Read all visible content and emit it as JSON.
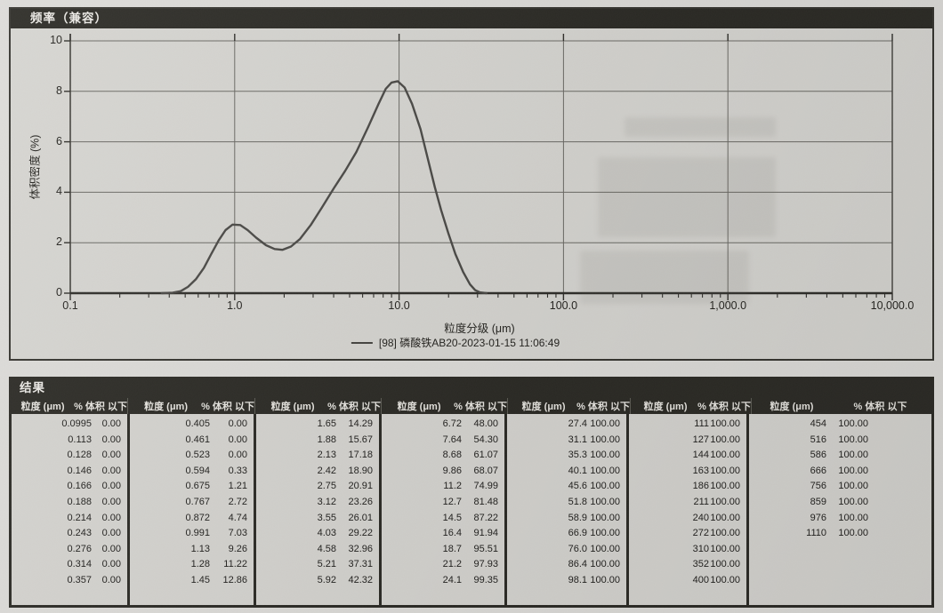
{
  "chart_panel": {
    "title": "频率（兼容）",
    "y_axis": {
      "label": "体积密度 (%)",
      "ticks": [
        "10",
        "8",
        "6",
        "4",
        "2",
        "0"
      ]
    },
    "x_axis": {
      "label": "粒度分级 (μm)",
      "ticks": [
        "0.1",
        "1.0",
        "10.0",
        "100.0",
        "1,000.0",
        "10,000.0"
      ]
    },
    "legend": "[98] 磷酸铁AB20-2023-01-15 11:06:49"
  },
  "chart_data": {
    "type": "line",
    "title": "频率（兼容）",
    "xlabel": "粒度分级 (μm)",
    "ylabel": "体积密度 (%)",
    "x_scale": "log",
    "xlim": [
      0.1,
      10000
    ],
    "ylim": [
      0,
      10
    ],
    "grid": true,
    "legend_position": "bottom",
    "series": [
      {
        "name": "[98] 磷酸铁AB20-2023-01-15 11:06:49",
        "x": [
          0.36,
          0.42,
          0.47,
          0.52,
          0.58,
          0.65,
          0.72,
          0.8,
          0.88,
          0.97,
          1.08,
          1.2,
          1.35,
          1.55,
          1.75,
          1.95,
          2.2,
          2.5,
          2.9,
          3.4,
          4.0,
          4.7,
          5.5,
          6.5,
          7.5,
          8.3,
          9.0,
          9.8,
          10.8,
          12.0,
          13.5,
          15.0,
          16.5,
          18.0,
          20.0,
          22.0,
          24.5,
          27.0,
          29.0,
          31.0,
          34.0
        ],
        "y": [
          0,
          0.02,
          0.08,
          0.25,
          0.55,
          1.0,
          1.55,
          2.1,
          2.5,
          2.72,
          2.7,
          2.5,
          2.2,
          1.9,
          1.75,
          1.72,
          1.85,
          2.15,
          2.7,
          3.4,
          4.15,
          4.85,
          5.6,
          6.6,
          7.5,
          8.1,
          8.35,
          8.4,
          8.15,
          7.5,
          6.5,
          5.3,
          4.2,
          3.3,
          2.35,
          1.55,
          0.85,
          0.35,
          0.12,
          0.03,
          0
        ]
      }
    ]
  },
  "results_table": {
    "title": "结果",
    "size_header": "粒度 (μm)",
    "pct_header": "% 体积 以下",
    "groups": [
      {
        "rows": [
          [
            "0.0995",
            "0.00"
          ],
          [
            "0.113",
            "0.00"
          ],
          [
            "0.128",
            "0.00"
          ],
          [
            "0.146",
            "0.00"
          ],
          [
            "0.166",
            "0.00"
          ],
          [
            "0.188",
            "0.00"
          ],
          [
            "0.214",
            "0.00"
          ],
          [
            "0.243",
            "0.00"
          ],
          [
            "0.276",
            "0.00"
          ],
          [
            "0.314",
            "0.00"
          ],
          [
            "0.357",
            "0.00"
          ]
        ]
      },
      {
        "rows": [
          [
            "0.405",
            "0.00"
          ],
          [
            "0.461",
            "0.00"
          ],
          [
            "0.523",
            "0.00"
          ],
          [
            "0.594",
            "0.33"
          ],
          [
            "0.675",
            "1.21"
          ],
          [
            "0.767",
            "2.72"
          ],
          [
            "0.872",
            "4.74"
          ],
          [
            "0.991",
            "7.03"
          ],
          [
            "1.13",
            "9.26"
          ],
          [
            "1.28",
            "11.22"
          ],
          [
            "1.45",
            "12.86"
          ]
        ]
      },
      {
        "rows": [
          [
            "1.65",
            "14.29"
          ],
          [
            "1.88",
            "15.67"
          ],
          [
            "2.13",
            "17.18"
          ],
          [
            "2.42",
            "18.90"
          ],
          [
            "2.75",
            "20.91"
          ],
          [
            "3.12",
            "23.26"
          ],
          [
            "3.55",
            "26.01"
          ],
          [
            "4.03",
            "29.22"
          ],
          [
            "4.58",
            "32.96"
          ],
          [
            "5.21",
            "37.31"
          ],
          [
            "5.92",
            "42.32"
          ]
        ]
      },
      {
        "rows": [
          [
            "6.72",
            "48.00"
          ],
          [
            "7.64",
            "54.30"
          ],
          [
            "8.68",
            "61.07"
          ],
          [
            "9.86",
            "68.07"
          ],
          [
            "11.2",
            "74.99"
          ],
          [
            "12.7",
            "81.48"
          ],
          [
            "14.5",
            "87.22"
          ],
          [
            "16.4",
            "91.94"
          ],
          [
            "18.7",
            "95.51"
          ],
          [
            "21.2",
            "97.93"
          ],
          [
            "24.1",
            "99.35"
          ]
        ]
      },
      {
        "rows": [
          [
            "27.4",
            "100.00"
          ],
          [
            "31.1",
            "100.00"
          ],
          [
            "35.3",
            "100.00"
          ],
          [
            "40.1",
            "100.00"
          ],
          [
            "45.6",
            "100.00"
          ],
          [
            "51.8",
            "100.00"
          ],
          [
            "58.9",
            "100.00"
          ],
          [
            "66.9",
            "100.00"
          ],
          [
            "76.0",
            "100.00"
          ],
          [
            "86.4",
            "100.00"
          ],
          [
            "98.1",
            "100.00"
          ]
        ]
      },
      {
        "rows": [
          [
            "111",
            "100.00"
          ],
          [
            "127",
            "100.00"
          ],
          [
            "144",
            "100.00"
          ],
          [
            "163",
            "100.00"
          ],
          [
            "186",
            "100.00"
          ],
          [
            "211",
            "100.00"
          ],
          [
            "240",
            "100.00"
          ],
          [
            "272",
            "100.00"
          ],
          [
            "310",
            "100.00"
          ],
          [
            "352",
            "100.00"
          ],
          [
            "400",
            "100.00"
          ]
        ]
      },
      {
        "rows": [
          [
            "454",
            "100.00"
          ],
          [
            "516",
            "100.00"
          ],
          [
            "586",
            "100.00"
          ],
          [
            "666",
            "100.00"
          ],
          [
            "756",
            "100.00"
          ],
          [
            "859",
            "100.00"
          ],
          [
            "976",
            "100.00"
          ],
          [
            "1110",
            "100.00"
          ]
        ]
      }
    ]
  }
}
